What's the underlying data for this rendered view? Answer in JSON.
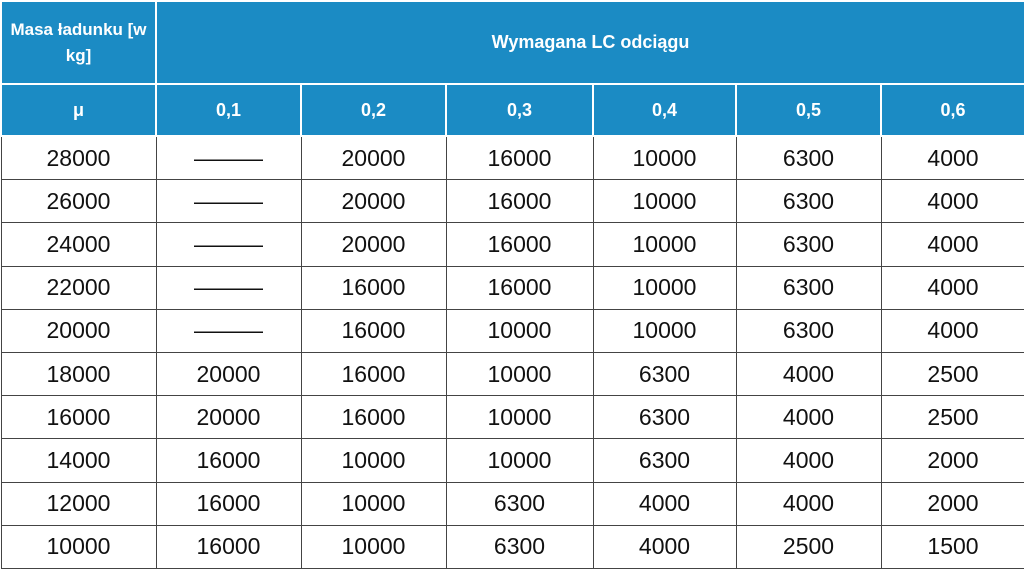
{
  "table": {
    "corner_header": "Masa ładunku [w kg]",
    "group_header": "Wymagana LC odciągu",
    "mu_label": "μ",
    "columns": [
      "0,1",
      "0,2",
      "0,3",
      "0,4",
      "0,5",
      "0,6"
    ],
    "rows": [
      [
        28000,
        "———",
        20000,
        16000,
        10000,
        6300,
        4000
      ],
      [
        26000,
        "———",
        20000,
        16000,
        10000,
        6300,
        4000
      ],
      [
        24000,
        "———",
        20000,
        16000,
        10000,
        6300,
        4000
      ],
      [
        22000,
        "———",
        16000,
        16000,
        10000,
        6300,
        4000
      ],
      [
        20000,
        "———",
        16000,
        10000,
        10000,
        6300,
        4000
      ],
      [
        18000,
        20000,
        16000,
        10000,
        6300,
        4000,
        2500
      ],
      [
        16000,
        20000,
        16000,
        10000,
        6300,
        4000,
        2500
      ],
      [
        14000,
        16000,
        10000,
        10000,
        6300,
        4000,
        2000
      ],
      [
        12000,
        16000,
        10000,
        6300,
        4000,
        4000,
        2000
      ],
      [
        10000,
        16000,
        10000,
        6300,
        4000,
        2500,
        1500
      ]
    ]
  }
}
